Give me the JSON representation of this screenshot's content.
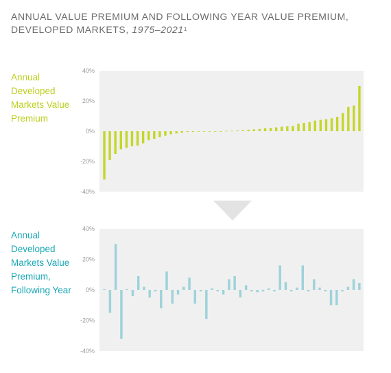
{
  "title": {
    "line1": "ANNUAL VALUE PREMIUM AND FOLLOWING YEAR VALUE PREMIUM,",
    "line2_prefix": "DEVELOPED MARKETS, ",
    "years": "1975–2021",
    "footnote": "1"
  },
  "colors": {
    "annual": "#c5d52a",
    "following": "#9ed2da",
    "panel_bg": "#f0f0f0",
    "arrow": "#e3e3e3"
  },
  "chart_data": [
    {
      "type": "bar",
      "label_lines": [
        "Annual",
        "Developed",
        "Markets Value",
        "Premium"
      ],
      "ylim": [
        -40,
        40
      ],
      "yticks": [
        40,
        20,
        0,
        -20,
        -40
      ],
      "ytick_labels": [
        "40%",
        "20%",
        "0%",
        "-20%",
        "-40%"
      ],
      "grid": false,
      "values": [
        -32,
        -19,
        -15,
        -12,
        -11,
        -10,
        -9.5,
        -8,
        -6,
        -5,
        -4,
        -3,
        -2,
        -1.5,
        -1,
        -0.5,
        -0.5,
        -0.3,
        -0.3,
        -0.2,
        -0.2,
        -0.1,
        0.2,
        0.3,
        0.5,
        0.7,
        1,
        1.2,
        1.5,
        2,
        2.2,
        2.5,
        3,
        3.2,
        3.5,
        5,
        5.5,
        6,
        7,
        7.5,
        8,
        8.5,
        9.5,
        12,
        16,
        17,
        30
      ]
    },
    {
      "type": "bar",
      "label_lines": [
        "Annual",
        "Developed",
        "Markets Value",
        "Premium,",
        "Following Year"
      ],
      "ylim": [
        -40,
        40
      ],
      "yticks": [
        40,
        20,
        0,
        -20,
        -40
      ],
      "ytick_labels": [
        "40%",
        "20%",
        "0%",
        "-20%",
        "-40%"
      ],
      "grid": false,
      "values": [
        0.5,
        -15,
        30,
        -32,
        0.5,
        -4,
        9,
        2,
        -5,
        -1,
        -12,
        12,
        -9,
        -3,
        2,
        8,
        -9,
        -1,
        -19,
        1,
        -1,
        -3,
        7,
        9,
        -5,
        3,
        -1,
        -1.5,
        -1,
        1,
        -1,
        16,
        5,
        -1,
        1.5,
        16,
        -1,
        7,
        1.5,
        -1,
        -10,
        -10,
        -1,
        2,
        7,
        4.5
      ]
    }
  ]
}
